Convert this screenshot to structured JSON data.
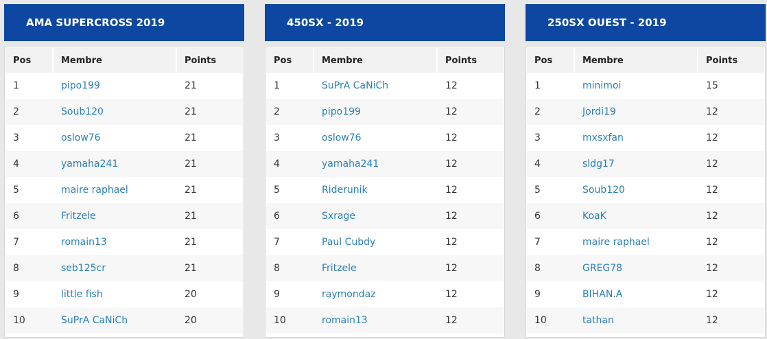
{
  "standings": [
    {
      "title": "AMA SUPERCROSS 2019",
      "headers": {
        "pos": "Pos",
        "member": "Membre",
        "points": "Points"
      },
      "rows": [
        {
          "pos": "1",
          "member": "pipo199",
          "points": "21"
        },
        {
          "pos": "2",
          "member": "Soub120",
          "points": "21"
        },
        {
          "pos": "3",
          "member": "oslow76",
          "points": "21"
        },
        {
          "pos": "4",
          "member": "yamaha241",
          "points": "21"
        },
        {
          "pos": "5",
          "member": "maire raphael",
          "points": "21"
        },
        {
          "pos": "6",
          "member": "Fritzele",
          "points": "21"
        },
        {
          "pos": "7",
          "member": "romain13",
          "points": "21"
        },
        {
          "pos": "8",
          "member": "seb125cr",
          "points": "21"
        },
        {
          "pos": "9",
          "member": "little fish",
          "points": "20"
        },
        {
          "pos": "10",
          "member": "SuPrA CaNiCh",
          "points": "20"
        }
      ]
    },
    {
      "title": "450SX - 2019",
      "headers": {
        "pos": "Pos",
        "member": "Membre",
        "points": "Points"
      },
      "rows": [
        {
          "pos": "1",
          "member": "SuPrA CaNiCh",
          "points": "12"
        },
        {
          "pos": "2",
          "member": "pipo199",
          "points": "12"
        },
        {
          "pos": "3",
          "member": "oslow76",
          "points": "12"
        },
        {
          "pos": "4",
          "member": "yamaha241",
          "points": "12"
        },
        {
          "pos": "5",
          "member": "Riderunik",
          "points": "12"
        },
        {
          "pos": "6",
          "member": "Sxrage",
          "points": "12"
        },
        {
          "pos": "7",
          "member": "Paul Cubdy",
          "points": "12"
        },
        {
          "pos": "8",
          "member": "Fritzele",
          "points": "12"
        },
        {
          "pos": "9",
          "member": "raymondaz",
          "points": "12"
        },
        {
          "pos": "10",
          "member": "romain13",
          "points": "12"
        }
      ]
    },
    {
      "title": "250SX OUEST - 2019",
      "headers": {
        "pos": "Pos",
        "member": "Membre",
        "points": "Points"
      },
      "rows": [
        {
          "pos": "1",
          "member": "minimoi",
          "points": "15"
        },
        {
          "pos": "2",
          "member": "Jordi19",
          "points": "12"
        },
        {
          "pos": "3",
          "member": "mxsxfan",
          "points": "12"
        },
        {
          "pos": "4",
          "member": "sldg17",
          "points": "12"
        },
        {
          "pos": "5",
          "member": "Soub120",
          "points": "12"
        },
        {
          "pos": "6",
          "member": "KoaK",
          "points": "12"
        },
        {
          "pos": "7",
          "member": "maire raphael",
          "points": "12"
        },
        {
          "pos": "8",
          "member": "GREG78",
          "points": "12"
        },
        {
          "pos": "9",
          "member": "BIHAN.A",
          "points": "12"
        },
        {
          "pos": "10",
          "member": "tathan",
          "points": "12"
        }
      ]
    }
  ],
  "colors": {
    "header_bg": "#0d47a1",
    "link": "#2a7fb5"
  }
}
